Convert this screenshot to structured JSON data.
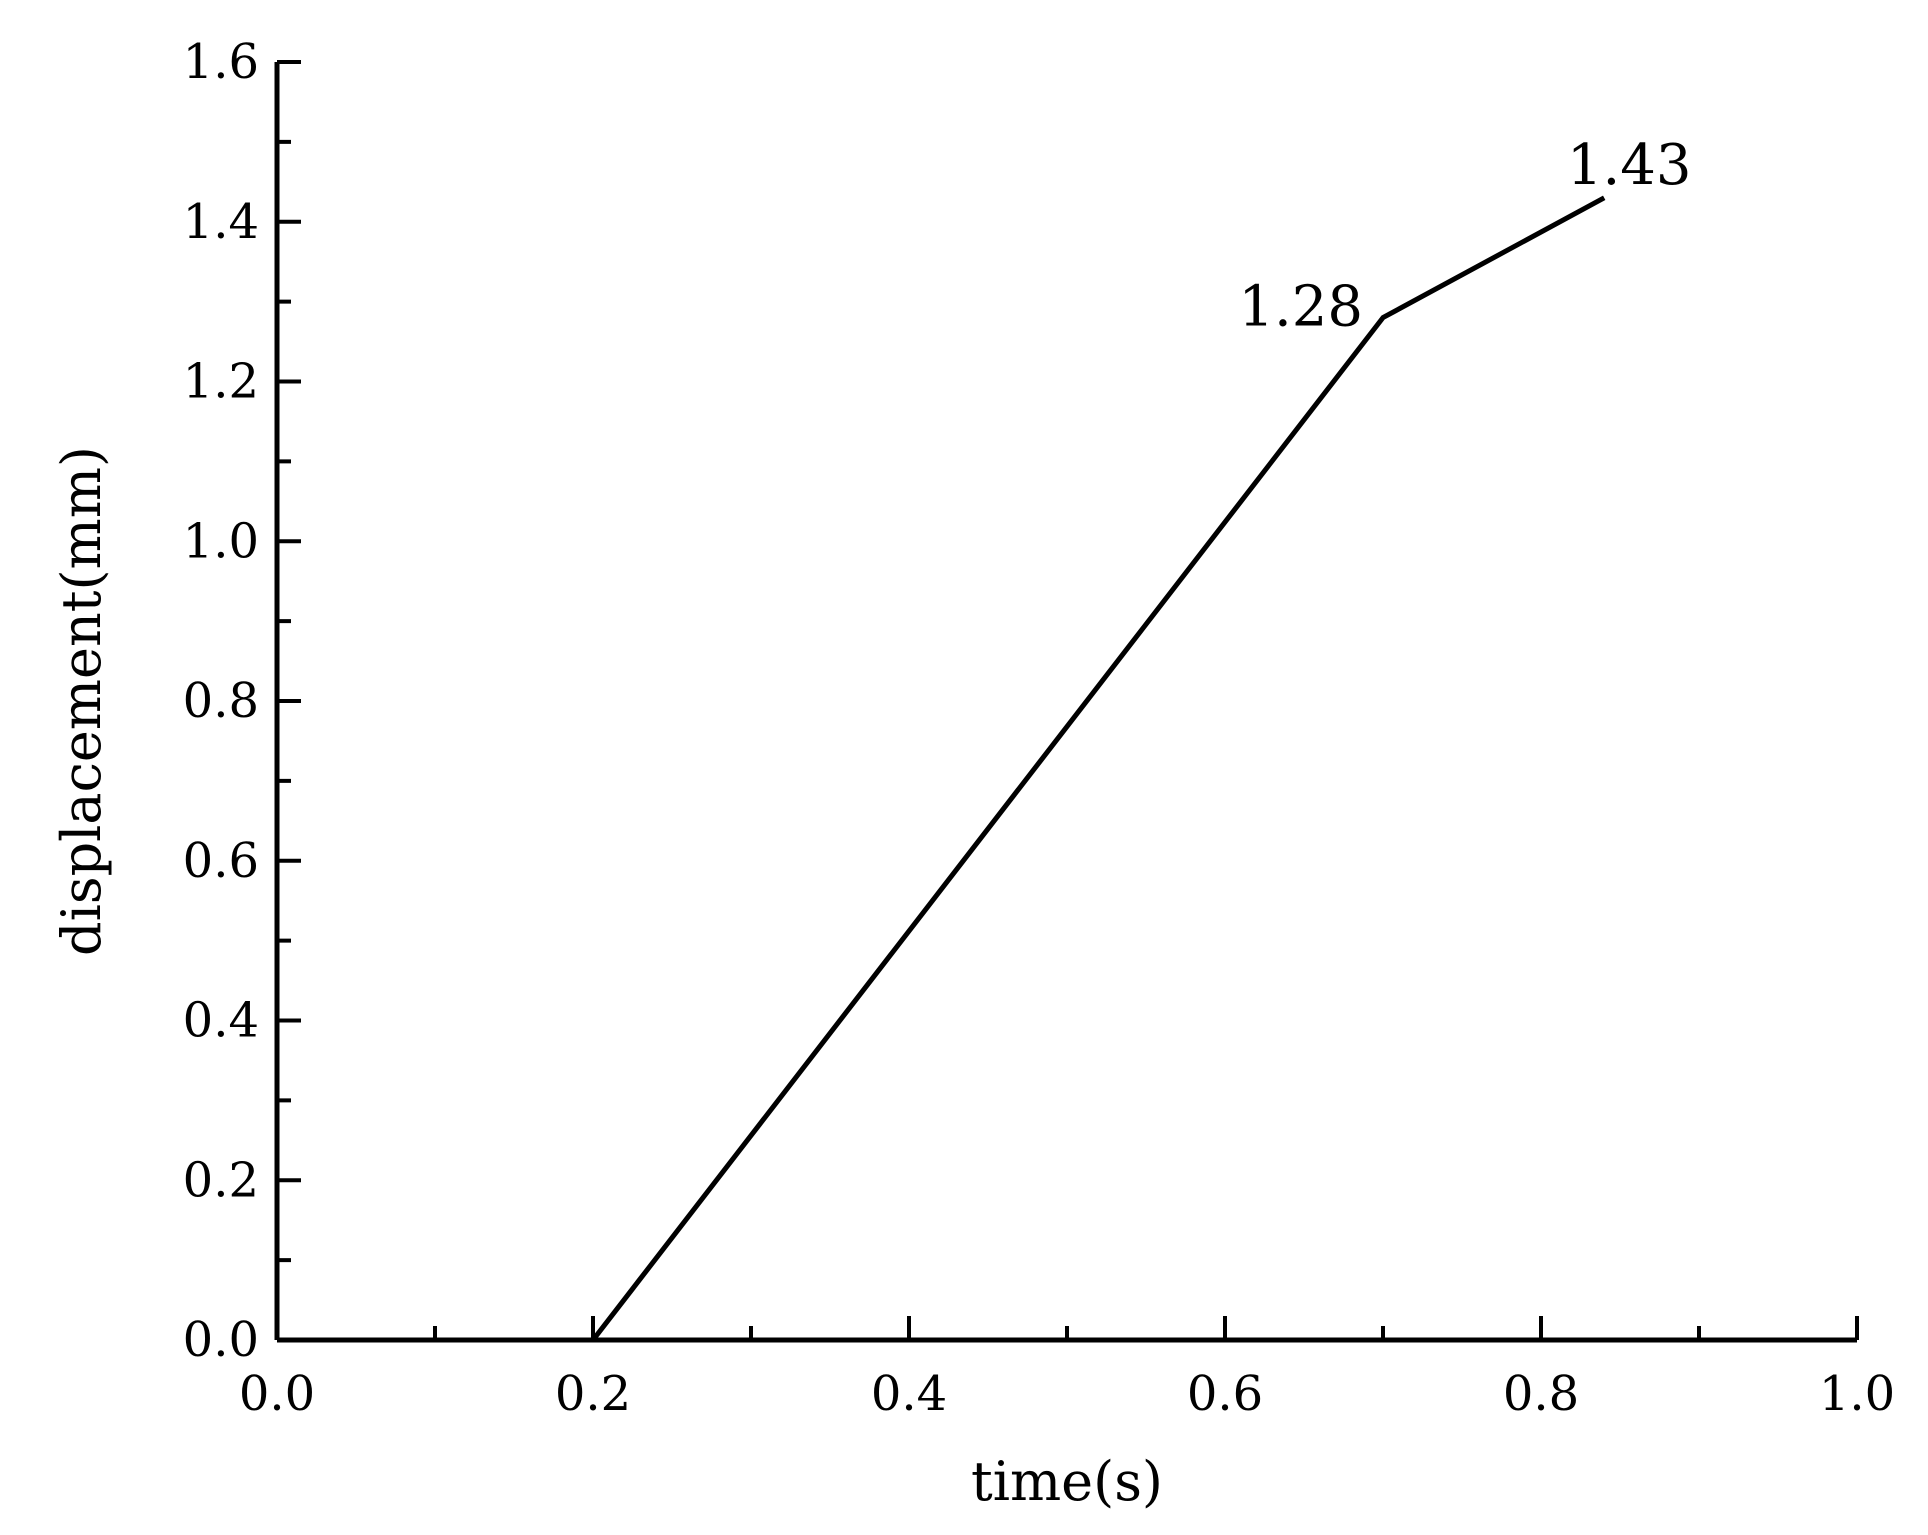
{
  "chart_data": {
    "type": "line",
    "title": "",
    "xlabel": "time(s)",
    "ylabel": "displacement(mm)",
    "xlim": [
      0.0,
      1.0
    ],
    "ylim": [
      0.0,
      1.6
    ],
    "x_ticks": [
      "0.0",
      "0.2",
      "0.4",
      "0.6",
      "0.8",
      "1.0"
    ],
    "y_ticks": [
      "0.0",
      "0.2",
      "0.4",
      "0.6",
      "0.8",
      "1.0",
      "1.2",
      "1.4",
      "1.6"
    ],
    "grid": false,
    "legend": "none",
    "series": [
      {
        "x": [
          0.2,
          0.7,
          0.84
        ],
        "y": [
          0.0,
          1.28,
          1.43
        ],
        "color": "#000000"
      }
    ],
    "annotations": [
      {
        "text": "1.28",
        "x": 0.7,
        "y": 1.28
      },
      {
        "text": "1.43",
        "x": 0.84,
        "y": 1.43
      }
    ]
  }
}
